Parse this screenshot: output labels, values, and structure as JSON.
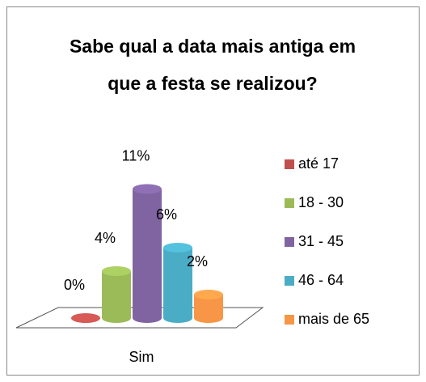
{
  "chart_data": {
    "type": "bar3d",
    "title": "Sabe qual a data mais antiga em que a festa se realizou?",
    "categories": [
      "Sim"
    ],
    "series": [
      {
        "name": "até 17",
        "color": "#c0504d",
        "values": [
          0
        ],
        "value_labels": [
          "0%"
        ]
      },
      {
        "name": "18 - 30",
        "color": "#9bbb59",
        "values": [
          4
        ],
        "value_labels": [
          "4%"
        ]
      },
      {
        "name": "31 - 45",
        "color": "#8064a2",
        "values": [
          11
        ],
        "value_labels": [
          "11%"
        ]
      },
      {
        "name": "46 - 64",
        "color": "#4bacc6",
        "values": [
          6
        ],
        "value_labels": [
          "6%"
        ]
      },
      {
        "name": "mais de 65",
        "color": "#f79646",
        "values": [
          2
        ],
        "value_labels": [
          "2%"
        ]
      }
    ],
    "legend": "right"
  }
}
